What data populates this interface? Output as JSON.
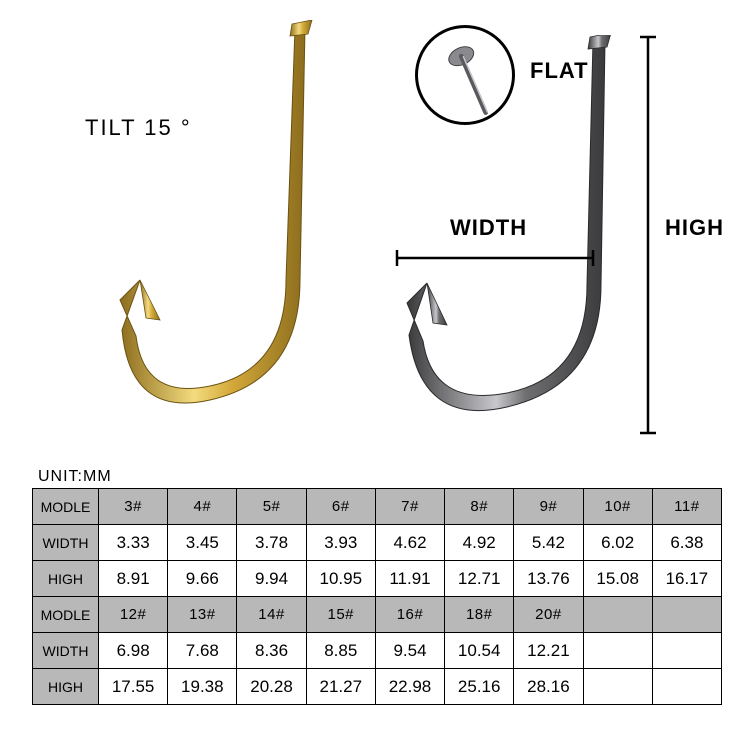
{
  "labels": {
    "tilt": "TILT 15 °",
    "flat": "FLAT",
    "width": "WIDTH",
    "high": "HIGH",
    "unit": "UNIT:MM"
  },
  "diagram": {
    "gold_hook_color": "#d4a93a",
    "gold_hook_highlight": "#f3db7e",
    "gold_hook_shadow": "#8c6d1e",
    "silver_hook_color": "#6e6e70",
    "silver_hook_highlight": "#c8c8cc",
    "silver_hook_shadow": "#3a3a3c",
    "circle_border": "#000000",
    "bracket_color": "#000000"
  },
  "table": {
    "row_labels": [
      "MODLE",
      "WIDTH",
      "HIGH",
      "MODLE",
      "WIDTH",
      "HIGH"
    ],
    "header_bg": "#b8b8b8",
    "border_color": "#000000",
    "cell_font_size_pt": 13,
    "rows": [
      [
        "3#",
        "4#",
        "5#",
        "6#",
        "7#",
        "8#",
        "9#",
        "10#",
        "11#"
      ],
      [
        "3.33",
        "3.45",
        "3.78",
        "3.93",
        "4.62",
        "4.92",
        "5.42",
        "6.02",
        "6.38"
      ],
      [
        "8.91",
        "9.66",
        "9.94",
        "10.95",
        "11.91",
        "12.71",
        "13.76",
        "15.08",
        "16.17"
      ],
      [
        "12#",
        "13#",
        "14#",
        "15#",
        "16#",
        "18#",
        "20#",
        "",
        ""
      ],
      [
        "6.98",
        "7.68",
        "8.36",
        "8.85",
        "9.54",
        "10.54",
        "12.21",
        "",
        ""
      ],
      [
        "17.55",
        "19.38",
        "20.28",
        "21.27",
        "22.98",
        "25.16",
        "28.16",
        "",
        ""
      ]
    ]
  }
}
